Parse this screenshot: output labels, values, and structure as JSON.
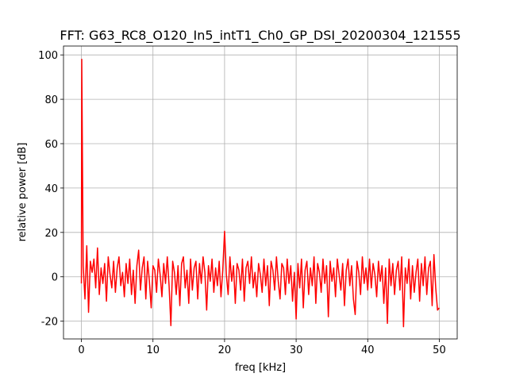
{
  "chart_data": {
    "type": "line",
    "title": "FFT: G63_RC8_O120_In5_intT1_Ch0_GP_DSI_20200304_121555",
    "xlabel": "freq [kHz]",
    "ylabel": "relative power [dB]",
    "color": "#ff0000",
    "grid": true,
    "xlim": [
      -2.5,
      52.5
    ],
    "xticks": [
      0,
      10,
      20,
      30,
      40,
      50
    ],
    "ylim": [
      -28,
      104
    ],
    "yticks": [
      -20,
      0,
      20,
      40,
      60,
      80,
      100
    ],
    "x": [
      0,
      0.05,
      0.25,
      0.5,
      0.75,
      1,
      1.25,
      1.5,
      1.75,
      2,
      2.25,
      2.5,
      2.75,
      3,
      3.25,
      3.5,
      3.75,
      4,
      4.25,
      4.5,
      4.75,
      5,
      5.25,
      5.5,
      5.75,
      6,
      6.25,
      6.5,
      6.75,
      7,
      7.25,
      7.5,
      7.75,
      8,
      8.25,
      8.5,
      8.75,
      9,
      9.25,
      9.5,
      9.75,
      10,
      10.25,
      10.5,
      10.75,
      11,
      11.25,
      11.5,
      11.75,
      12,
      12.25,
      12.5,
      12.75,
      13,
      13.25,
      13.5,
      13.75,
      14,
      14.25,
      14.5,
      14.75,
      15,
      15.25,
      15.5,
      15.75,
      16,
      16.25,
      16.5,
      16.75,
      17,
      17.25,
      17.5,
      17.75,
      18,
      18.25,
      18.5,
      18.75,
      19,
      19.25,
      19.5,
      19.75,
      20,
      20.25,
      20.5,
      20.75,
      21,
      21.25,
      21.5,
      21.75,
      22,
      22.25,
      22.5,
      22.75,
      23,
      23.25,
      23.5,
      23.75,
      24,
      24.25,
      24.5,
      24.75,
      25,
      25.25,
      25.5,
      25.75,
      26,
      26.25,
      26.5,
      26.75,
      27,
      27.25,
      27.5,
      27.75,
      28,
      28.25,
      28.5,
      28.75,
      29,
      29.25,
      29.5,
      29.75,
      30,
      30.25,
      30.5,
      30.75,
      31,
      31.25,
      31.5,
      31.75,
      32,
      32.25,
      32.5,
      32.75,
      33,
      33.25,
      33.5,
      33.75,
      34,
      34.25,
      34.5,
      34.75,
      35,
      35.25,
      35.5,
      35.75,
      36,
      36.25,
      36.5,
      36.75,
      37,
      37.25,
      37.5,
      37.75,
      38,
      38.25,
      38.5,
      38.75,
      39,
      39.25,
      39.5,
      39.75,
      40,
      40.25,
      40.5,
      40.75,
      41,
      41.25,
      41.5,
      41.75,
      42,
      42.25,
      42.5,
      42.75,
      43,
      43.25,
      43.5,
      43.75,
      44,
      44.25,
      44.5,
      44.75,
      45,
      45.25,
      45.5,
      45.75,
      46,
      46.25,
      46.5,
      46.75,
      47,
      47.25,
      47.5,
      47.75,
      48,
      48.25,
      48.5,
      48.75,
      49,
      49.25,
      49.5,
      49.75,
      50
    ],
    "values": [
      -3,
      98,
      5,
      -10,
      14,
      -16,
      7,
      2,
      8,
      -5,
      13,
      -8,
      4,
      -3,
      6,
      -11,
      9,
      1,
      -5,
      7,
      -7,
      4,
      9,
      -4,
      2,
      -9,
      6,
      -3,
      8,
      -8,
      3,
      -12,
      5,
      12,
      -6,
      4,
      9,
      -10,
      7,
      -2,
      -14,
      5,
      3,
      -7,
      8,
      1,
      -9,
      6,
      -3,
      9,
      -4,
      -22,
      7,
      2,
      -8,
      5,
      -13,
      6,
      9,
      -5,
      3,
      -12,
      8,
      -6,
      4,
      7,
      -10,
      6,
      -3,
      9,
      2,
      -15,
      5,
      -2,
      8,
      -7,
      4,
      -4,
      7,
      -9,
      3,
      20.5,
      1,
      -8,
      9,
      -2,
      5,
      -12,
      6,
      3,
      -6,
      8,
      -11,
      4,
      7,
      -3,
      9,
      -5,
      2,
      -9,
      6,
      1,
      -7,
      8,
      -4,
      5,
      -13,
      7,
      3,
      -6,
      9,
      -2,
      -10,
      6,
      4,
      -8,
      8,
      -3,
      5,
      -11,
      2,
      -19,
      6,
      -5,
      8,
      -14,
      3,
      7,
      -8,
      4,
      -4,
      9,
      -12,
      6,
      2,
      -7,
      8,
      -3,
      5,
      -18,
      7,
      -2,
      4,
      -9,
      8,
      1,
      -6,
      6,
      -13,
      3,
      8,
      -4,
      5,
      -10,
      -17,
      7,
      2,
      -8,
      9,
      -3,
      4,
      -6,
      8,
      -5,
      6,
      1,
      -9,
      7,
      -2,
      5,
      -12,
      4,
      -21,
      8,
      -4,
      6,
      -8,
      3,
      7,
      -6,
      9,
      -22.5,
      4,
      -3,
      8,
      -10,
      5,
      -7,
      2,
      8,
      -11,
      6,
      -4,
      9,
      -8,
      4,
      7,
      -13,
      10,
      -5,
      -15,
      -14
    ]
  }
}
